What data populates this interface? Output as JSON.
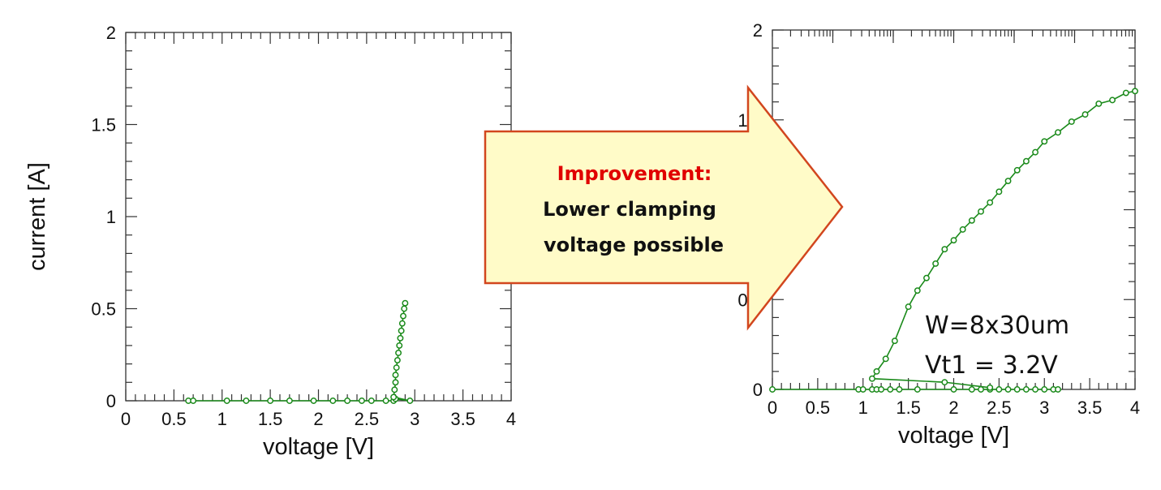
{
  "chart_data": [
    {
      "type": "line",
      "xlabel": "voltage [V]",
      "ylabel": "current [A]",
      "xlim": [
        0,
        4
      ],
      "ylim": [
        0,
        2
      ],
      "x_ticks": [
        "0",
        "0.5",
        "1",
        "1.5",
        "2",
        "2.5",
        "3",
        "3.5",
        "4"
      ],
      "y_ticks": [
        "0",
        "0.5",
        "1",
        "1.5",
        "2"
      ],
      "grid": false,
      "color": "#1a8a1a",
      "series": [
        {
          "points": [
            [
              0.65,
              0
            ],
            [
              0.7,
              0
            ],
            [
              1.05,
              0
            ],
            [
              1.25,
              0
            ],
            [
              1.5,
              0
            ],
            [
              1.7,
              0
            ],
            [
              1.95,
              0
            ],
            [
              2.15,
              0
            ],
            [
              2.3,
              0
            ],
            [
              2.45,
              0
            ],
            [
              2.55,
              0
            ],
            [
              2.7,
              0
            ],
            [
              2.78,
              0
            ],
            [
              2.8,
              0.01
            ],
            [
              2.95,
              0
            ],
            [
              2.78,
              0.02
            ],
            [
              2.79,
              0.06
            ],
            [
              2.8,
              0.1
            ],
            [
              2.8,
              0.14
            ],
            [
              2.81,
              0.18
            ],
            [
              2.82,
              0.22
            ],
            [
              2.83,
              0.26
            ],
            [
              2.84,
              0.3
            ],
            [
              2.85,
              0.34
            ],
            [
              2.86,
              0.38
            ],
            [
              2.87,
              0.42
            ],
            [
              2.88,
              0.46
            ],
            [
              2.89,
              0.5
            ],
            [
              2.9,
              0.53
            ]
          ]
        }
      ]
    },
    {
      "type": "line",
      "xlabel": "voltage [V]",
      "ylabel": "",
      "xlim": [
        0,
        4
      ],
      "ylim": [
        0,
        2
      ],
      "x_ticks": [
        "0",
        "0.5",
        "1",
        "1.5",
        "2",
        "2.5",
        "3",
        "3.5",
        "4"
      ],
      "y_ticks": [
        "0",
        "0.5",
        "1",
        "1.5",
        "2"
      ],
      "y_ticks_visible": [
        "0",
        "0",
        "1",
        "2"
      ],
      "grid": false,
      "color": "#1a8a1a",
      "annotations": [
        "W=8x30um",
        "Vt1 = 3.2V"
      ],
      "series": [
        {
          "points": [
            [
              0,
              0
            ],
            [
              0.95,
              0
            ],
            [
              1.0,
              0
            ],
            [
              1.1,
              0
            ],
            [
              1.15,
              0
            ],
            [
              1.2,
              0
            ],
            [
              1.3,
              0
            ],
            [
              1.4,
              0
            ],
            [
              1.6,
              0
            ],
            [
              2.0,
              0
            ],
            [
              2.2,
              0
            ],
            [
              2.3,
              0
            ],
            [
              2.4,
              0
            ],
            [
              2.5,
              0
            ],
            [
              2.6,
              0
            ],
            [
              2.7,
              0
            ],
            [
              2.8,
              0
            ],
            [
              2.9,
              0
            ],
            [
              3.0,
              0
            ],
            [
              3.1,
              0
            ],
            [
              3.15,
              0
            ]
          ]
        },
        {
          "points": [
            [
              2.4,
              0.01
            ],
            [
              1.9,
              0.04
            ],
            [
              1.1,
              0.06
            ],
            [
              1.15,
              0.1
            ],
            [
              1.25,
              0.17
            ],
            [
              1.35,
              0.27
            ],
            [
              1.5,
              0.46
            ],
            [
              1.6,
              0.55
            ],
            [
              1.7,
              0.62
            ],
            [
              1.8,
              0.7
            ],
            [
              1.9,
              0.78
            ],
            [
              2.0,
              0.83
            ],
            [
              2.1,
              0.89
            ],
            [
              2.2,
              0.94
            ],
            [
              2.3,
              0.99
            ],
            [
              2.4,
              1.04
            ],
            [
              2.5,
              1.1
            ],
            [
              2.6,
              1.16
            ],
            [
              2.7,
              1.22
            ],
            [
              2.8,
              1.27
            ],
            [
              2.9,
              1.32
            ],
            [
              3.0,
              1.38
            ],
            [
              3.15,
              1.43
            ],
            [
              3.3,
              1.49
            ],
            [
              3.45,
              1.53
            ],
            [
              3.6,
              1.59
            ],
            [
              3.75,
              1.61
            ],
            [
              3.9,
              1.65
            ],
            [
              4.0,
              1.66
            ]
          ]
        }
      ]
    }
  ],
  "arrow": {
    "title": "Improvement:",
    "line1": "Lower clamping",
    "line2": "voltage possible",
    "title_color": "#e00000",
    "fill": "#fffbc8",
    "stroke": "#d2461e"
  }
}
